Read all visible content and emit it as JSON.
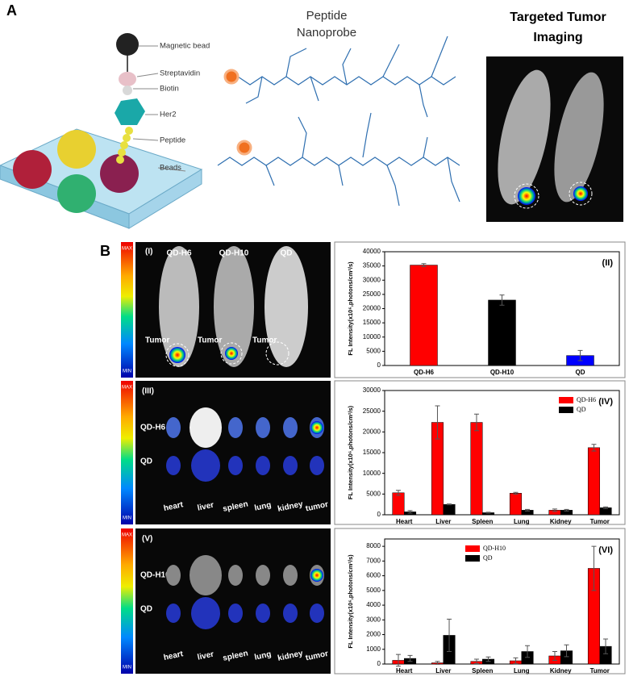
{
  "panel_a": {
    "label": "A",
    "schematic_labels": [
      "Magnetic bead",
      "Streptavidin",
      "Biotin",
      "Her2",
      "Peptide",
      "Beads"
    ],
    "probe_title": [
      "Peptide",
      "Nanoprobe"
    ],
    "imaging_title": [
      "Targeted Tumor",
      "Imaging"
    ]
  },
  "panel_b": {
    "label": "B",
    "scale": {
      "max": "MAX",
      "min": "MIN"
    },
    "image_i": {
      "label": "(I)",
      "columns": [
        "QD-H6",
        "QD-H10",
        "QD"
      ],
      "tumor": "Tumor"
    },
    "image_iii": {
      "label": "(III)",
      "rows": [
        "QD-H6",
        "QD"
      ],
      "organs": [
        "heart",
        "liver",
        "spleen",
        "lung",
        "kidney",
        "tumor"
      ]
    },
    "image_v": {
      "label": "(V)",
      "rows": [
        "QD-H10",
        "QD"
      ],
      "organs": [
        "heart",
        "liver",
        "spleen",
        "lung",
        "kidney",
        "tumor"
      ]
    }
  },
  "chart_data": [
    {
      "type": "bar",
      "panel_label": "(II)",
      "y_label": "FL Intensity(x10⁶,photons/cm²/s)",
      "categories": [
        "QD-H6",
        "QD-H10",
        "QD"
      ],
      "values": [
        35300,
        23000,
        3500
      ],
      "errors": [
        500,
        1800,
        1800
      ],
      "colors": [
        "#ff0000",
        "#000000",
        "#0000ff"
      ],
      "ylim": [
        0,
        40000
      ],
      "yticks": [
        0,
        5000,
        10000,
        15000,
        20000,
        25000,
        30000,
        35000,
        40000
      ]
    },
    {
      "type": "bar",
      "panel_label": "(IV)",
      "y_label": "FL Intensity(x10⁶,photons/cm²/s)",
      "categories": [
        "Heart",
        "Liver",
        "Spleen",
        "Lung",
        "Kidney",
        "Tumor"
      ],
      "series": [
        {
          "name": "QD-H6",
          "color": "#ff0000",
          "values": [
            5300,
            22300,
            22300,
            5200,
            1100,
            16200
          ],
          "errors": [
            600,
            4000,
            2000,
            200,
            300,
            800
          ]
        },
        {
          "name": "QD",
          "color": "#000000",
          "values": [
            700,
            2500,
            500,
            1100,
            1100,
            1700
          ],
          "errors": [
            300,
            100,
            100,
            200,
            200,
            200
          ]
        }
      ],
      "ylim": [
        0,
        30000
      ],
      "yticks": [
        0,
        5000,
        10000,
        15000,
        20000,
        25000,
        30000
      ],
      "legend": "top-right"
    },
    {
      "type": "bar",
      "panel_label": "(VI)",
      "y_label": "FL Intensity(x10⁶,photons/cm²/s)",
      "categories": [
        "Heart",
        "Liver",
        "Spleen",
        "Lung",
        "Kidney",
        "Tumor"
      ],
      "series": [
        {
          "name": "QD-H10",
          "color": "#ff0000",
          "values": [
            250,
            80,
            180,
            220,
            550,
            6500
          ],
          "errors": [
            400,
            100,
            150,
            200,
            300,
            1500
          ]
        },
        {
          "name": "QD",
          "color": "#000000",
          "values": [
            380,
            1950,
            330,
            850,
            900,
            1200
          ],
          "errors": [
            200,
            1100,
            150,
            400,
            400,
            500
          ]
        }
      ],
      "ylim": [
        0,
        8500
      ],
      "yticks": [
        0,
        1000,
        2000,
        3000,
        4000,
        5000,
        6000,
        7000,
        8000
      ],
      "legend": "top-left"
    }
  ]
}
